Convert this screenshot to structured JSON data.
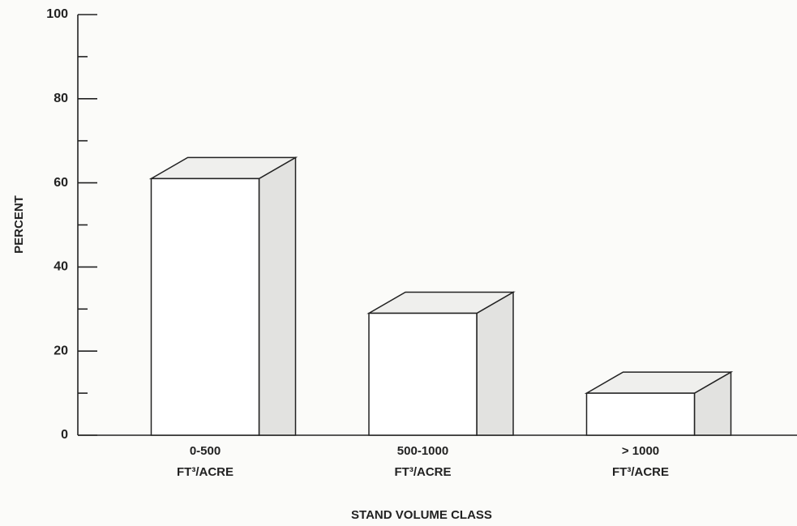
{
  "chart_data": {
    "type": "bar3d",
    "categories": [
      [
        "0-500",
        "FT³/ACRE"
      ],
      [
        "500-1000",
        "FT³/ACRE"
      ],
      [
        "> 1000",
        "FT³/ACRE"
      ]
    ],
    "values": [
      61,
      29,
      10
    ],
    "ylabel": "PERCENT",
    "xlabel": "STAND VOLUME CLASS",
    "ylim": [
      0,
      100
    ],
    "yticks": [
      0,
      20,
      40,
      60,
      80,
      100
    ],
    "minor_yticks": [
      10,
      30,
      50,
      70,
      90
    ],
    "color": "#ffffff",
    "side_color": "#e2e2e0",
    "top_color": "#efefed"
  }
}
